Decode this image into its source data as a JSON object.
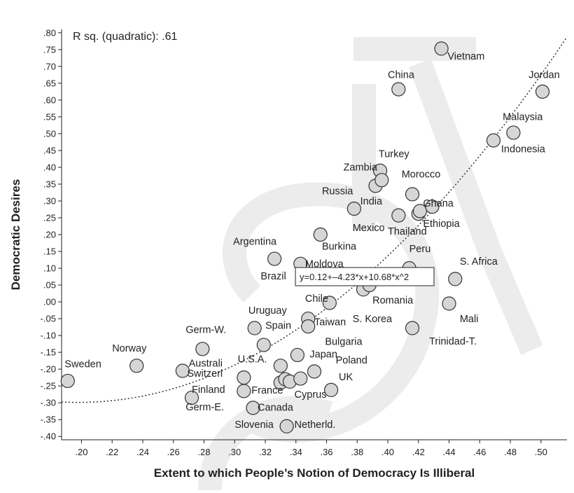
{
  "chart_data": {
    "type": "scatter",
    "xlabel": "Extent to which People’s Notion of Democracy Is Illiberal",
    "ylabel": "Democratic Desires",
    "annotation": "R sq. (quadratic): .61",
    "equation": "y=0.12+–4.23*x+10.68*x^2",
    "fit": {
      "a": 0.12,
      "b": -4.23,
      "c": 10.68,
      "style": "dotted"
    },
    "xlim": [
      0.187,
      0.517
    ],
    "ylim": [
      -0.41,
      0.81
    ],
    "x_ticks": [
      0.2,
      0.22,
      0.24,
      0.26,
      0.28,
      0.3,
      0.32,
      0.34,
      0.36,
      0.38,
      0.4,
      0.42,
      0.44,
      0.46,
      0.48,
      0.5
    ],
    "x_tick_labels": [
      ".20",
      ".22",
      ".24",
      ".26",
      ".28",
      ".30",
      ".32",
      ".34",
      ".36",
      ".38",
      ".40",
      ".42",
      ".44",
      ".46",
      ".48",
      ".50"
    ],
    "y_ticks": [
      0.8,
      0.75,
      0.7,
      0.65,
      0.6,
      0.55,
      0.5,
      0.45,
      0.4,
      0.35,
      0.3,
      0.25,
      0.2,
      0.15,
      0.1,
      0.05,
      0.0,
      -0.05,
      -0.1,
      -0.15,
      -0.2,
      -0.25,
      -0.3,
      -0.35,
      -0.4
    ],
    "y_tick_labels": [
      ".80",
      ".75",
      ".70",
      ".65",
      ".60",
      ".55",
      ".50",
      ".45",
      ".40",
      ".35",
      ".30",
      ".25",
      ".20",
      ".15",
      ".10",
      ".05",
      ".00",
      "-.05",
      "-.10",
      "-.15",
      "-.20",
      "-.25",
      "-.30",
      "-.35",
      "-.40"
    ],
    "grid": false,
    "points": [
      {
        "x": 0.191,
        "y": -0.235
      },
      {
        "x": 0.236,
        "y": -0.19
      },
      {
        "x": 0.266,
        "y": -0.205
      },
      {
        "x": 0.272,
        "y": -0.285
      },
      {
        "x": 0.279,
        "y": -0.14
      },
      {
        "x": 0.306,
        "y": -0.225
      },
      {
        "x": 0.306,
        "y": -0.265
      },
      {
        "x": 0.312,
        "y": -0.315
      },
      {
        "x": 0.313,
        "y": -0.078
      },
      {
        "x": 0.319,
        "y": -0.128
      },
      {
        "x": 0.326,
        "y": 0.128
      },
      {
        "x": 0.33,
        "y": -0.19
      },
      {
        "x": 0.33,
        "y": -0.24
      },
      {
        "x": 0.333,
        "y": -0.23
      },
      {
        "x": 0.334,
        "y": -0.37
      },
      {
        "x": 0.336,
        "y": -0.237
      },
      {
        "x": 0.341,
        "y": -0.158
      },
      {
        "x": 0.343,
        "y": -0.228
      },
      {
        "x": 0.343,
        "y": 0.113
      },
      {
        "x": 0.348,
        "y": -0.05
      },
      {
        "x": 0.348,
        "y": -0.073
      },
      {
        "x": 0.352,
        "y": -0.207
      },
      {
        "x": 0.356,
        "y": 0.2
      },
      {
        "x": 0.362,
        "y": -0.003
      },
      {
        "x": 0.363,
        "y": -0.262
      },
      {
        "x": 0.378,
        "y": 0.277
      },
      {
        "x": 0.384,
        "y": 0.037
      },
      {
        "x": 0.388,
        "y": 0.05
      },
      {
        "x": 0.392,
        "y": 0.345
      },
      {
        "x": 0.395,
        "y": 0.39
      },
      {
        "x": 0.396,
        "y": 0.362
      },
      {
        "x": 0.407,
        "y": 0.257
      },
      {
        "x": 0.407,
        "y": 0.632
      },
      {
        "x": 0.414,
        "y": 0.1
      },
      {
        "x": 0.416,
        "y": 0.32
      },
      {
        "x": 0.416,
        "y": -0.078
      },
      {
        "x": 0.42,
        "y": 0.262
      },
      {
        "x": 0.421,
        "y": 0.27
      },
      {
        "x": 0.429,
        "y": 0.283
      },
      {
        "x": 0.435,
        "y": 0.753
      },
      {
        "x": 0.44,
        "y": -0.005
      },
      {
        "x": 0.444,
        "y": 0.068
      },
      {
        "x": 0.469,
        "y": 0.48
      },
      {
        "x": 0.482,
        "y": 0.503
      },
      {
        "x": 0.501,
        "y": 0.625
      }
    ],
    "labels": [
      {
        "text": "Sweden",
        "x": 0.189,
        "y": -0.195
      },
      {
        "text": "Norway",
        "x": 0.22,
        "y": -0.148
      },
      {
        "text": "Australi",
        "x": 0.27,
        "y": -0.192
      },
      {
        "text": "Germ-W.",
        "x": 0.268,
        "y": -0.092
      },
      {
        "text": "Switzerl",
        "x": 0.269,
        "y": -0.223
      },
      {
        "text": "Finland",
        "x": 0.272,
        "y": -0.27
      },
      {
        "text": "Germ-E.",
        "x": 0.268,
        "y": -0.323
      },
      {
        "text": "France",
        "x": 0.311,
        "y": -0.273
      },
      {
        "text": "Canada",
        "x": 0.315,
        "y": -0.324
      },
      {
        "text": "Slovenia",
        "x": 0.3,
        "y": -0.375
      },
      {
        "text": "Netherld.",
        "x": 0.339,
        "y": -0.375
      },
      {
        "text": "U.S.A.",
        "x": 0.302,
        "y": -0.18
      },
      {
        "text": "Uruguay",
        "x": 0.309,
        "y": -0.035
      },
      {
        "text": "Spain",
        "x": 0.32,
        "y": -0.08
      },
      {
        "text": "Cyprus",
        "x": 0.339,
        "y": -0.285
      },
      {
        "text": "Japan",
        "x": 0.349,
        "y": -0.165
      },
      {
        "text": "Poland",
        "x": 0.366,
        "y": -0.183
      },
      {
        "text": "UK",
        "x": 0.368,
        "y": -0.233
      },
      {
        "text": "Bulgaria",
        "x": 0.359,
        "y": -0.128
      },
      {
        "text": "Chile",
        "x": 0.346,
        "y": -0.0
      },
      {
        "text": "Taiwan",
        "x": 0.352,
        "y": -0.07
      },
      {
        "text": "S. Korea",
        "x": 0.377,
        "y": -0.06
      },
      {
        "text": "Romania",
        "x": 0.39,
        "y": -0.005
      },
      {
        "text": "Brazil",
        "x": 0.317,
        "y": 0.067
      },
      {
        "text": "Moldova",
        "x": 0.346,
        "y": 0.103
      },
      {
        "text": "Argentina",
        "x": 0.299,
        "y": 0.17
      },
      {
        "text": "Burkina",
        "x": 0.357,
        "y": 0.155
      },
      {
        "text": "Mexico",
        "x": 0.377,
        "y": 0.21
      },
      {
        "text": "Thailand",
        "x": 0.4,
        "y": 0.2
      },
      {
        "text": "Peru",
        "x": 0.414,
        "y": 0.148
      },
      {
        "text": "Ethiopia",
        "x": 0.423,
        "y": 0.223
      },
      {
        "text": "Ghana",
        "x": 0.423,
        "y": 0.283
      },
      {
        "text": "India",
        "x": 0.382,
        "y": 0.29
      },
      {
        "text": "Russia",
        "x": 0.357,
        "y": 0.32
      },
      {
        "text": "Morocco",
        "x": 0.409,
        "y": 0.37
      },
      {
        "text": "Zambia",
        "x": 0.371,
        "y": 0.39
      },
      {
        "text": "Turkey",
        "x": 0.394,
        "y": 0.43
      },
      {
        "text": "China",
        "x": 0.4,
        "y": 0.665
      },
      {
        "text": "Vietnam",
        "x": 0.439,
        "y": 0.72
      },
      {
        "text": "Jordan",
        "x": 0.492,
        "y": 0.665
      },
      {
        "text": "Malaysia",
        "x": 0.475,
        "y": 0.54
      },
      {
        "text": "Indonesia",
        "x": 0.474,
        "y": 0.445
      },
      {
        "text": "S. Africa",
        "x": 0.447,
        "y": 0.11
      },
      {
        "text": "Mali",
        "x": 0.447,
        "y": -0.06
      },
      {
        "text": "Trinidad-T.",
        "x": 0.427,
        "y": -0.127
      }
    ]
  }
}
